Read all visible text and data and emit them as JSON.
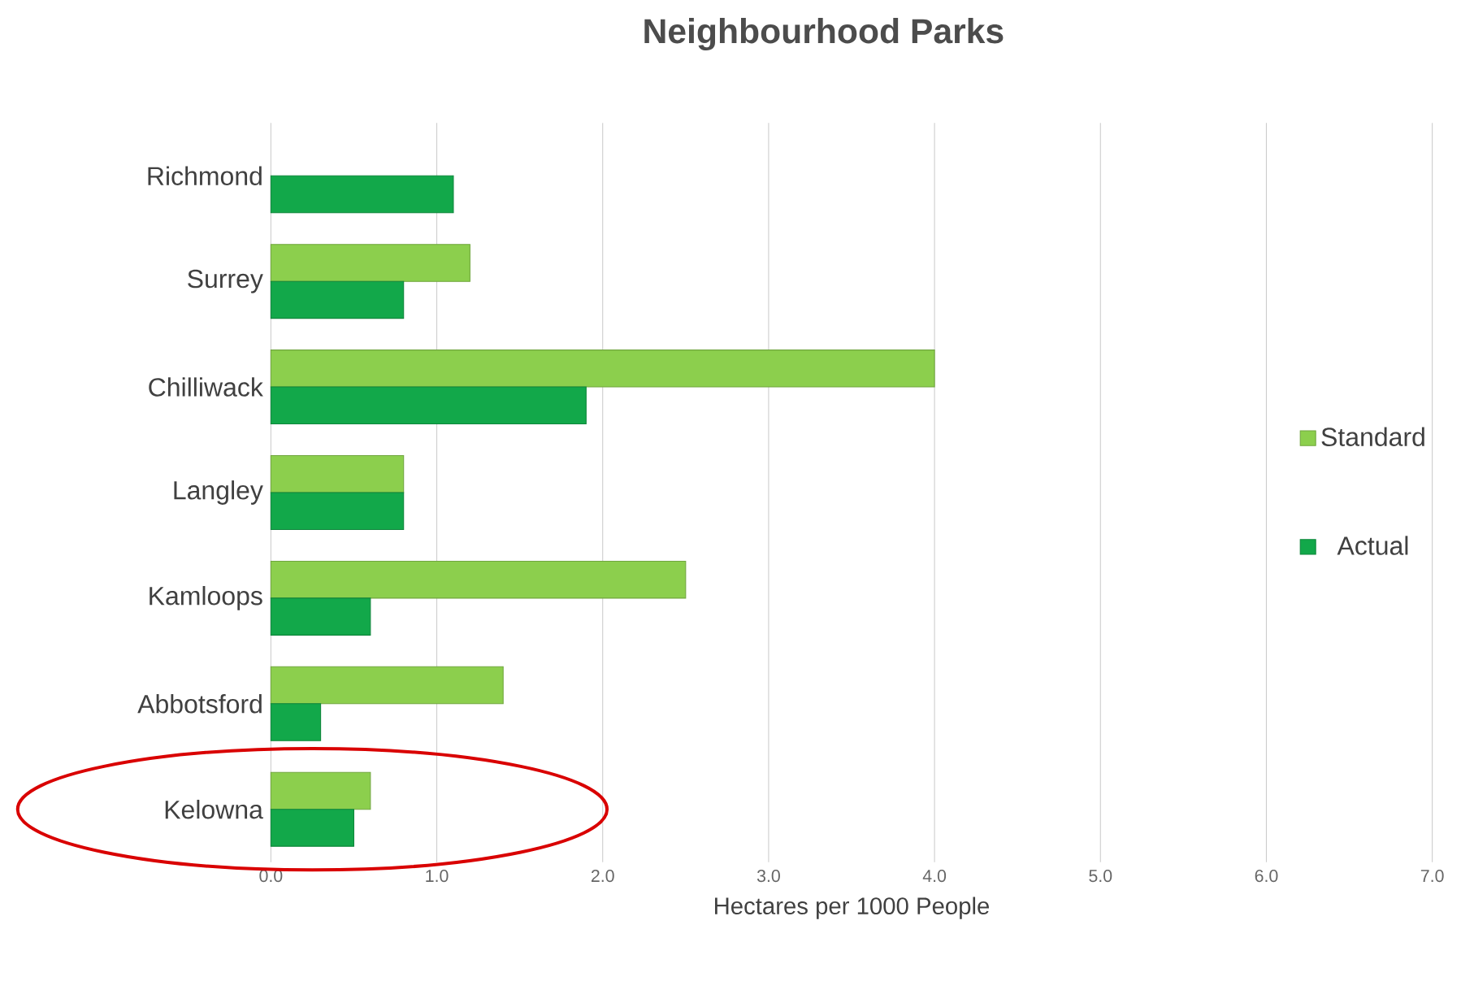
{
  "chart_data": {
    "type": "bar",
    "orientation": "horizontal",
    "title": "Neighbourhood Parks",
    "xlabel": "Hectares per 1000 People",
    "categories": [
      "Richmond",
      "Surrey",
      "Chilliwack",
      "Langley",
      "Kamloops",
      "Abbotsford",
      "Kelowna"
    ],
    "series": [
      {
        "name": "Standard",
        "color": "#8ccf4d",
        "values": [
          null,
          1.2,
          4.0,
          0.8,
          2.5,
          1.4,
          0.6
        ]
      },
      {
        "name": "Actual",
        "color": "#12a84a",
        "values": [
          1.1,
          0.8,
          1.9,
          0.8,
          0.6,
          0.3,
          0.5
        ]
      }
    ],
    "xlim": [
      0,
      7
    ],
    "xticks": [
      {
        "value": 0,
        "label": "0.0"
      },
      {
        "value": 1,
        "label": "1.0"
      },
      {
        "value": 2,
        "label": "2.0"
      },
      {
        "value": 3,
        "label": "3.0"
      },
      {
        "value": 4,
        "label": "4.0"
      },
      {
        "value": 5,
        "label": "5.0"
      },
      {
        "value": 6,
        "label": "6.0"
      },
      {
        "value": 7,
        "label": "7.0"
      }
    ],
    "grid": "x",
    "legend": "right"
  }
}
